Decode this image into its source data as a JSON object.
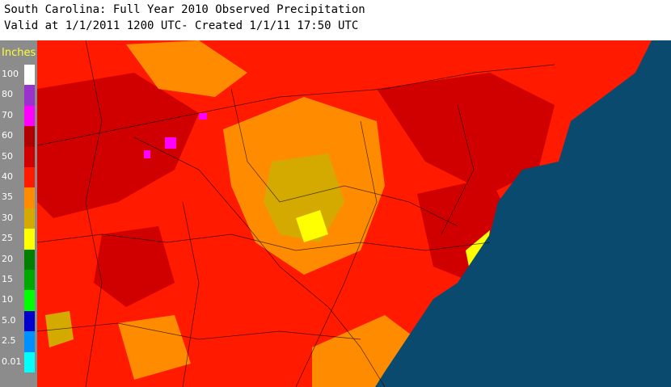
{
  "header": {
    "title": "South Carolina: Full Year 2010 Observed Precipitation",
    "subtitle": "Valid at 1/1/2011 1200 UTC- Created 1/1/11 17:50 UTC"
  },
  "legend": {
    "unit": "Inches",
    "items": [
      {
        "label": "100",
        "color": "#ffffff"
      },
      {
        "label": "80",
        "color": "#9933cc"
      },
      {
        "label": "70",
        "color": "#ff00ff"
      },
      {
        "label": "60",
        "color": "#b00000"
      },
      {
        "label": "50",
        "color": "#d00000"
      },
      {
        "label": "40",
        "color": "#ff1a00"
      },
      {
        "label": "35",
        "color": "#ff8c00"
      },
      {
        "label": "30",
        "color": "#d4aa00"
      },
      {
        "label": "25",
        "color": "#ffff00"
      },
      {
        "label": "20",
        "color": "#007f00"
      },
      {
        "label": "15",
        "color": "#00a800"
      },
      {
        "label": "10",
        "color": "#00ff00"
      },
      {
        "label": "5.0",
        "color": "#0000cc"
      },
      {
        "label": "2.5",
        "color": "#0090ff"
      },
      {
        "label": "0.01",
        "color": "#00ffff"
      }
    ]
  }
}
